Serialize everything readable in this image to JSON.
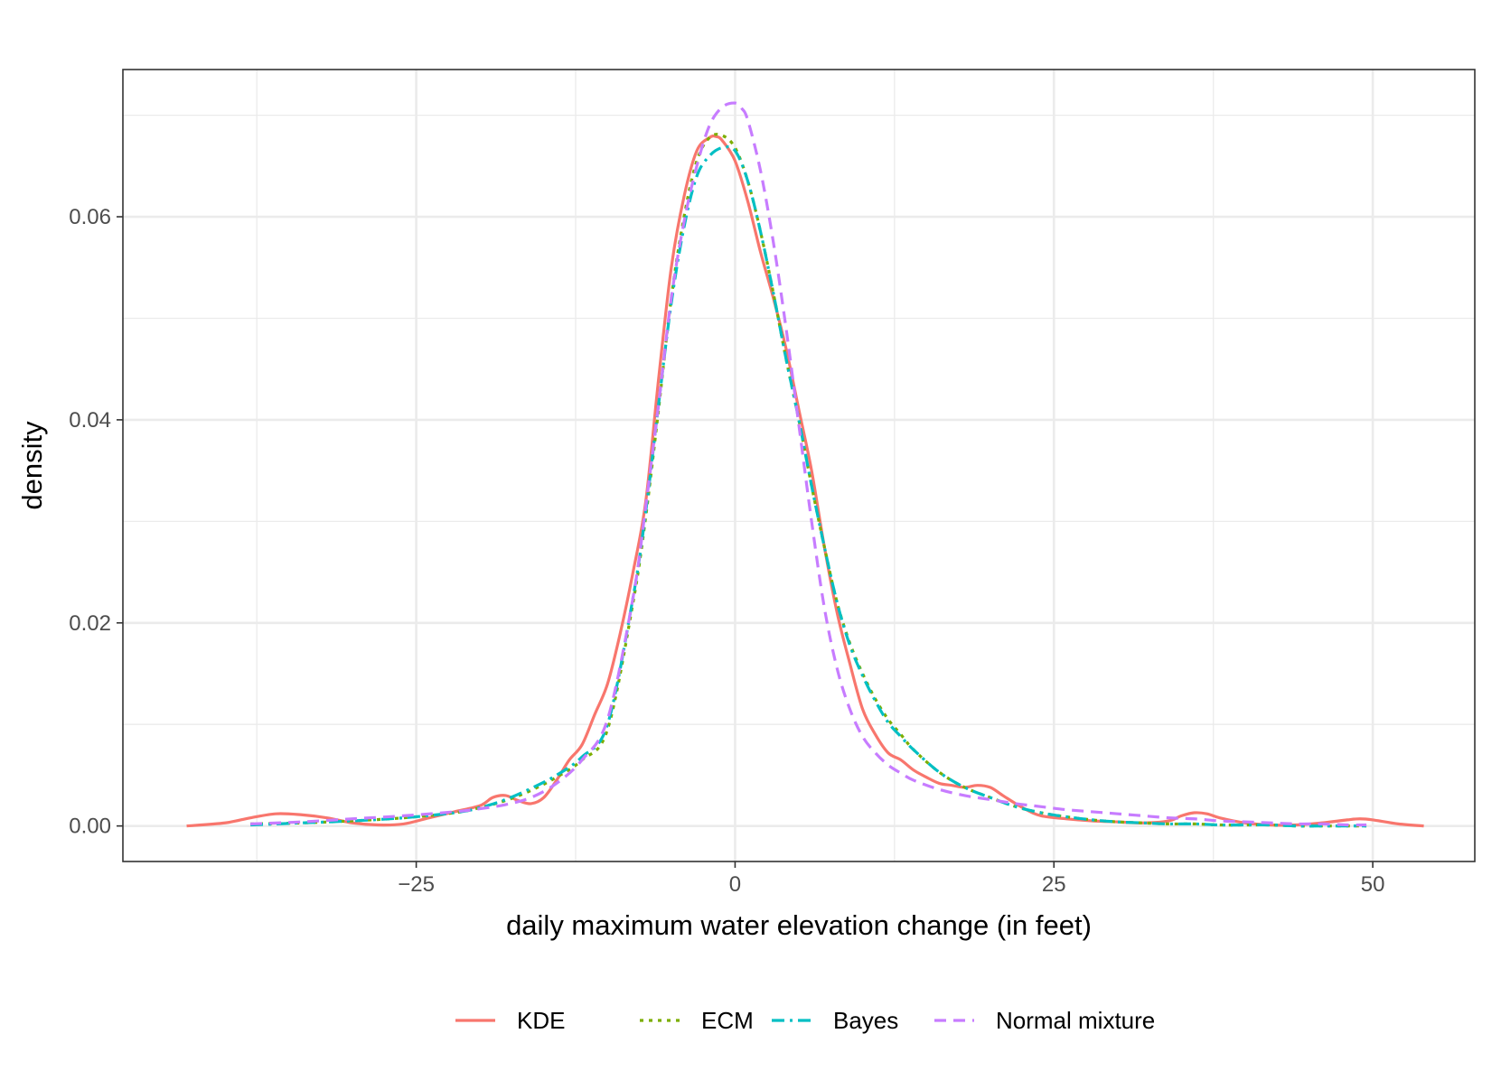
{
  "chart_data": {
    "type": "line",
    "xlabel": "daily maximum water elevation change (in feet)",
    "ylabel": "density",
    "xlim": [
      -48,
      58
    ],
    "ylim": [
      -0.0035,
      0.0745
    ],
    "x_ticks": [
      -25,
      0,
      25,
      50
    ],
    "x_tick_labels": [
      "−25",
      "0",
      "25",
      "50"
    ],
    "y_ticks": [
      0.0,
      0.02,
      0.04,
      0.06
    ],
    "y_tick_labels": [
      "0.00",
      "0.02",
      "0.04",
      "0.06"
    ],
    "x_minor_ticks": [
      -37.5,
      -12.5,
      12.5,
      37.5
    ],
    "y_minor_ticks": [
      0.01,
      0.03,
      0.05,
      0.07
    ],
    "grid": true,
    "legend_position": "bottom",
    "series": [
      {
        "name": "KDE",
        "color": "#F8766D",
        "dash": "solid",
        "x": [
          -43,
          -40,
          -38,
          -36,
          -34,
          -32,
          -30,
          -28,
          -26,
          -24,
          -22,
          -20,
          -19,
          -18,
          -17,
          -16,
          -15,
          -14,
          -13,
          -12,
          -11,
          -10,
          -9,
          -8,
          -7,
          -6,
          -5,
          -4,
          -3,
          -2,
          -1.5,
          -1,
          0,
          1,
          2,
          3,
          4,
          5,
          6,
          7,
          8,
          9,
          10,
          11,
          12,
          13,
          14,
          15,
          16,
          17,
          18,
          19,
          20,
          21,
          22,
          23,
          24,
          26,
          28,
          30,
          32,
          34,
          35,
          36,
          37,
          38,
          40,
          42,
          44,
          46,
          48,
          49,
          50,
          52,
          54
        ],
        "y": [
          0.0,
          0.0003,
          0.0008,
          0.0012,
          0.0011,
          0.0008,
          0.0003,
          0.0001,
          0.0002,
          0.0008,
          0.0014,
          0.002,
          0.0028,
          0.003,
          0.0025,
          0.0022,
          0.0028,
          0.0045,
          0.0065,
          0.008,
          0.011,
          0.014,
          0.019,
          0.025,
          0.032,
          0.044,
          0.055,
          0.062,
          0.0665,
          0.0678,
          0.0679,
          0.0675,
          0.0655,
          0.0615,
          0.0565,
          0.052,
          0.047,
          0.041,
          0.035,
          0.0275,
          0.021,
          0.016,
          0.0115,
          0.009,
          0.0072,
          0.0065,
          0.0055,
          0.0048,
          0.0042,
          0.004,
          0.0038,
          0.004,
          0.0038,
          0.003,
          0.0022,
          0.0015,
          0.001,
          0.0007,
          0.0005,
          0.0004,
          0.0003,
          0.0005,
          0.001,
          0.0013,
          0.0012,
          0.0008,
          0.0003,
          0.0001,
          0.0001,
          0.0003,
          0.0006,
          0.0007,
          0.0006,
          0.0002,
          0.0
        ]
      },
      {
        "name": "ECM",
        "color": "#7CAE00",
        "dash": "dotted",
        "x": [
          -38,
          -34,
          -30,
          -26,
          -22,
          -20,
          -18,
          -16,
          -14,
          -12,
          -10,
          -8,
          -7,
          -6,
          -5,
          -4,
          -3,
          -2,
          -1,
          0,
          1,
          2,
          3,
          4,
          5,
          6,
          7,
          8,
          9,
          10,
          11,
          12,
          13,
          14,
          16,
          18,
          20,
          22,
          24,
          26,
          28,
          30,
          32,
          34,
          36,
          38,
          40,
          42,
          44,
          46,
          48,
          49.5
        ],
        "y": [
          0.0002,
          0.0003,
          0.0005,
          0.0008,
          0.0013,
          0.0018,
          0.0025,
          0.0035,
          0.0048,
          0.0065,
          0.0095,
          0.022,
          0.0305,
          0.041,
          0.052,
          0.06,
          0.0655,
          0.0678,
          0.068,
          0.0668,
          0.0635,
          0.0585,
          0.0525,
          0.046,
          0.04,
          0.0335,
          0.0275,
          0.022,
          0.018,
          0.015,
          0.0125,
          0.0105,
          0.009,
          0.0075,
          0.0053,
          0.0038,
          0.0028,
          0.0019,
          0.0013,
          0.0009,
          0.0006,
          0.0004,
          0.0003,
          0.0002,
          0.0002,
          0.0001,
          0.0001,
          0.0001,
          0.0,
          0.0,
          0.0,
          0.0
        ]
      },
      {
        "name": "Bayes",
        "color": "#00BFC4",
        "dash": "dashdot",
        "x": [
          -38,
          -34,
          -30,
          -26,
          -22,
          -20,
          -18,
          -16,
          -14,
          -12,
          -10,
          -8,
          -7,
          -6,
          -5,
          -4,
          -3,
          -2,
          -1,
          0,
          1,
          2,
          3,
          4,
          5,
          6,
          7,
          8,
          9,
          10,
          11,
          12,
          13,
          14,
          16,
          18,
          20,
          22,
          24,
          26,
          28,
          30,
          32,
          34,
          36,
          38,
          40,
          42,
          44,
          46,
          48,
          49.5
        ],
        "y": [
          0.0001,
          0.0003,
          0.0005,
          0.0008,
          0.0013,
          0.0018,
          0.0026,
          0.0037,
          0.005,
          0.0068,
          0.01,
          0.0225,
          0.031,
          0.0415,
          0.0515,
          0.059,
          0.064,
          0.066,
          0.0668,
          0.0665,
          0.0635,
          0.0585,
          0.0525,
          0.046,
          0.04,
          0.0335,
          0.0275,
          0.022,
          0.0178,
          0.0148,
          0.0123,
          0.0102,
          0.0088,
          0.0075,
          0.0053,
          0.0038,
          0.0028,
          0.0019,
          0.0013,
          0.0009,
          0.0006,
          0.0004,
          0.0003,
          0.0002,
          0.0002,
          0.0001,
          0.0001,
          0.0001,
          0.0,
          0.0,
          0.0,
          0.0
        ]
      },
      {
        "name": "Normal mixture",
        "color": "#C77CFF",
        "dash": "dashed",
        "x": [
          -38,
          -34,
          -30,
          -26,
          -22,
          -20,
          -18,
          -16,
          -14,
          -12,
          -10,
          -8,
          -7,
          -6,
          -5,
          -4,
          -3,
          -2,
          -1,
          0,
          0.5,
          1,
          2,
          3,
          4,
          5,
          6,
          7,
          8,
          9,
          10,
          11,
          12,
          13,
          14,
          16,
          18,
          20,
          22,
          24,
          26,
          28,
          30,
          32,
          34,
          36,
          38,
          40,
          42,
          44,
          46,
          48,
          49.5
        ],
        "y": [
          0.0002,
          0.0004,
          0.0007,
          0.001,
          0.0014,
          0.0017,
          0.0021,
          0.0028,
          0.0042,
          0.0065,
          0.0105,
          0.0225,
          0.0315,
          0.0415,
          0.052,
          0.0595,
          0.065,
          0.069,
          0.0708,
          0.0712,
          0.0707,
          0.0695,
          0.0645,
          0.0575,
          0.049,
          0.0395,
          0.03,
          0.0215,
          0.0155,
          0.0115,
          0.0088,
          0.0072,
          0.006,
          0.0052,
          0.0045,
          0.0036,
          0.003,
          0.0026,
          0.0022,
          0.0019,
          0.0016,
          0.0014,
          0.0012,
          0.001,
          0.0008,
          0.0007,
          0.0005,
          0.0004,
          0.0003,
          0.0002,
          0.0002,
          0.0001,
          0.0001
        ]
      }
    ]
  }
}
